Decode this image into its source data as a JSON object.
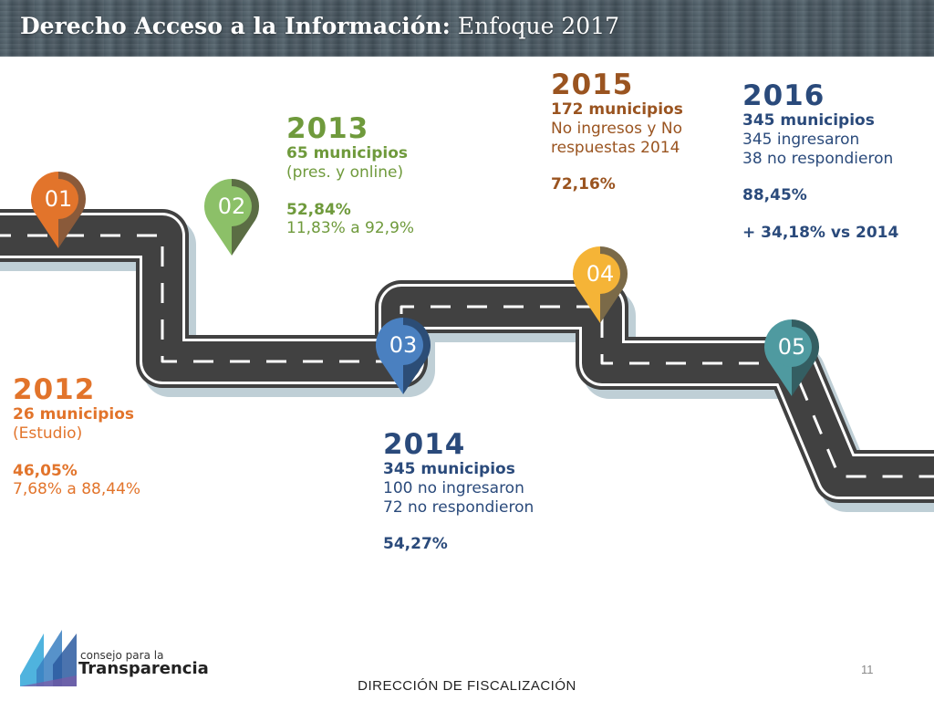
{
  "header": {
    "title_bold": "Derecho Acceso a la Información:",
    "title_normal": "Enfoque 2017"
  },
  "colors": {
    "header_bg": "#4e5d66",
    "road": "#414141",
    "road_shadow": "#bfcfd6",
    "pin_orange": "#e2742b",
    "pin_green": "#8cc068",
    "pin_blue": "#4a80c0",
    "pin_yellow": "#f5b437",
    "pin_teal": "#4f9aa0"
  },
  "milestones": [
    {
      "marker": "01",
      "year": "2012",
      "municipios": "26 municipios",
      "line1": "(Estudio)",
      "line2": "",
      "percent": "46,05%",
      "note": "7,68% a 88,44%"
    },
    {
      "marker": "02",
      "year": "2013",
      "municipios": "65 municipios",
      "line1": "(pres. y online)",
      "line2": "",
      "percent": "52,84%",
      "note": "11,83% a 92,9%"
    },
    {
      "marker": "03",
      "year": "2014",
      "municipios": "345 municipios",
      "line1": "100 no ingresaron",
      "line2": "72 no respondieron",
      "percent": "54,27%",
      "note": ""
    },
    {
      "marker": "04",
      "year": "2015",
      "municipios": "172 municipios",
      "line1": "No ingresos y No",
      "line2": "respuestas 2014",
      "percent": "72,16%",
      "note": ""
    },
    {
      "marker": "05",
      "year": "2016",
      "municipios": "345 municipios",
      "line1": "345 ingresaron",
      "line2": "38 no respondieron",
      "percent": "88,45%",
      "note": "+ 34,18% vs 2014"
    }
  ],
  "logo": {
    "small": "consejo para la",
    "big": "Transparencia"
  },
  "page_number": "11",
  "footer": "DIRECCIÓN DE FISCALIZACIÓN"
}
